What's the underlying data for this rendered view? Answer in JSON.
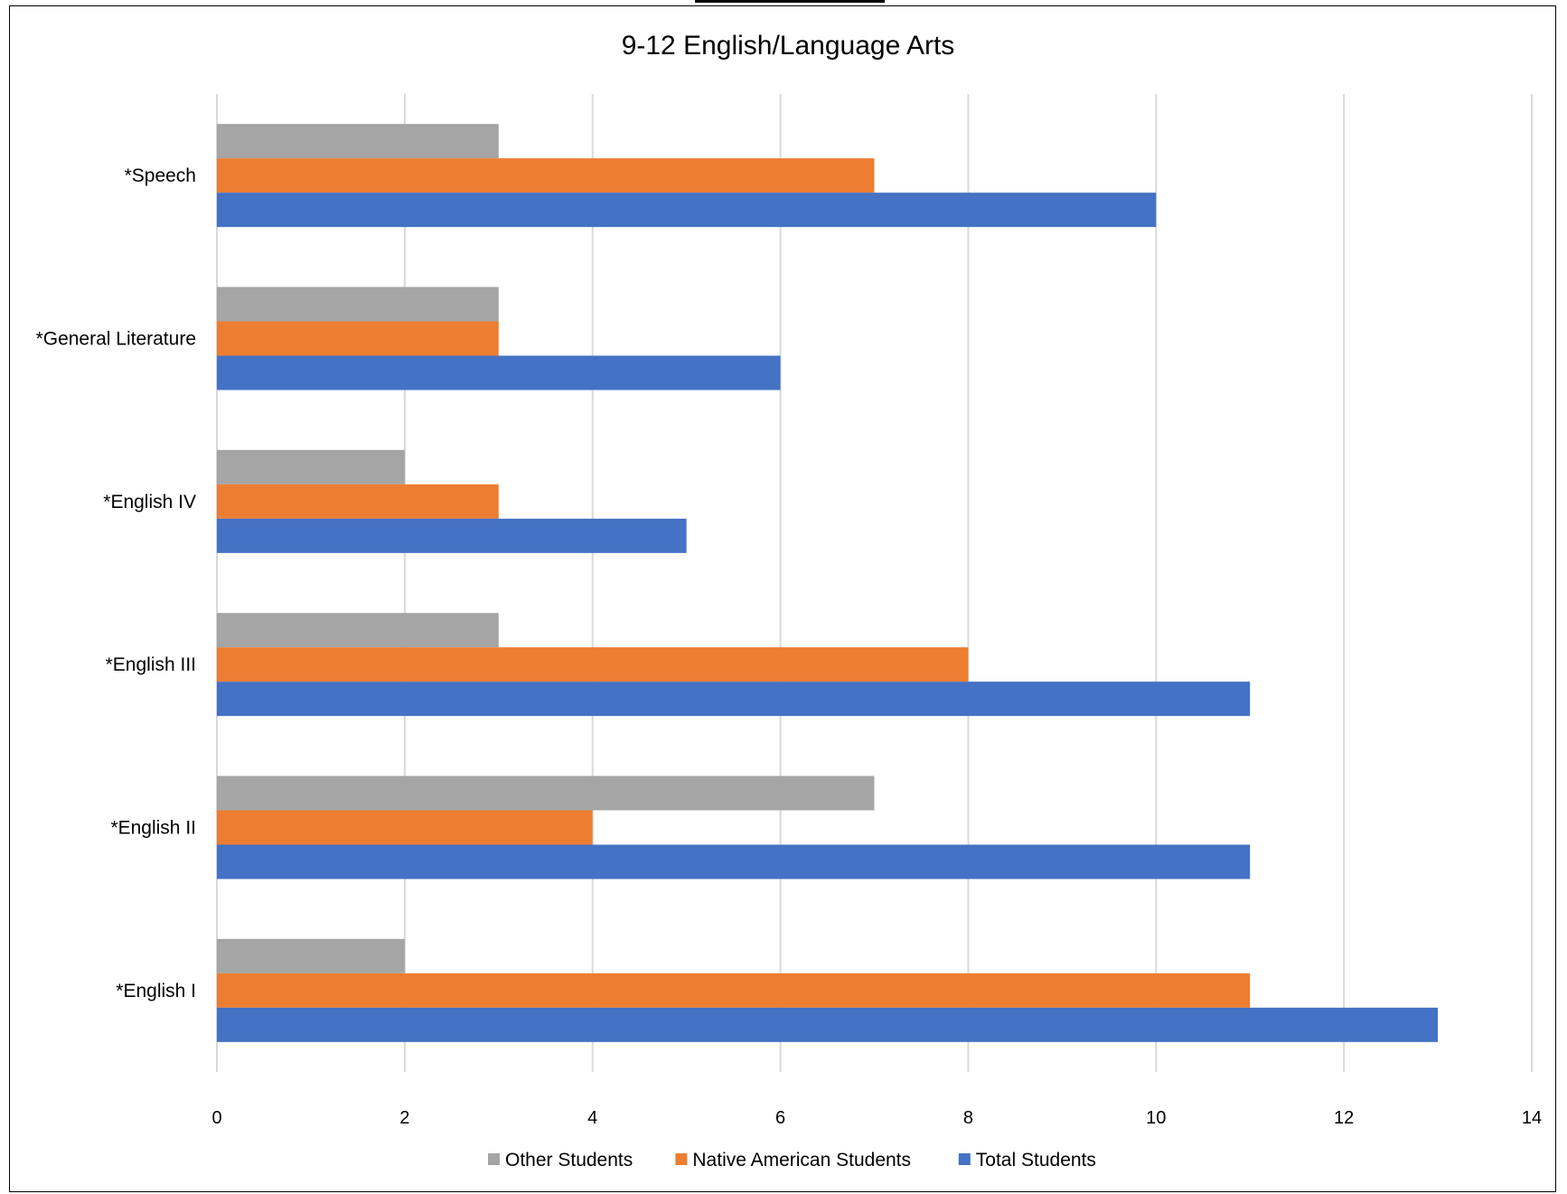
{
  "chart_data": {
    "type": "bar",
    "orientation": "horizontal",
    "title": "9-12 English/Language Arts",
    "categories": [
      "*English I",
      "*English II",
      "*English III",
      "*English IV",
      "*General Literature",
      "*Speech"
    ],
    "series": [
      {
        "name": "Other Students",
        "color": "#A5A5A5",
        "values": [
          2,
          7,
          3,
          2,
          3,
          3
        ]
      },
      {
        "name": "Native American Students",
        "color": "#ED7D31",
        "values": [
          11,
          4,
          8,
          3,
          3,
          7
        ]
      },
      {
        "name": "Total Students",
        "color": "#4472C4",
        "values": [
          13,
          11,
          11,
          5,
          6,
          10
        ]
      }
    ],
    "xlim": [
      0,
      14
    ],
    "xticks": [
      "0",
      "2",
      "4",
      "6",
      "8",
      "10",
      "12",
      "14"
    ],
    "grid": true,
    "legend_position": "bottom"
  }
}
